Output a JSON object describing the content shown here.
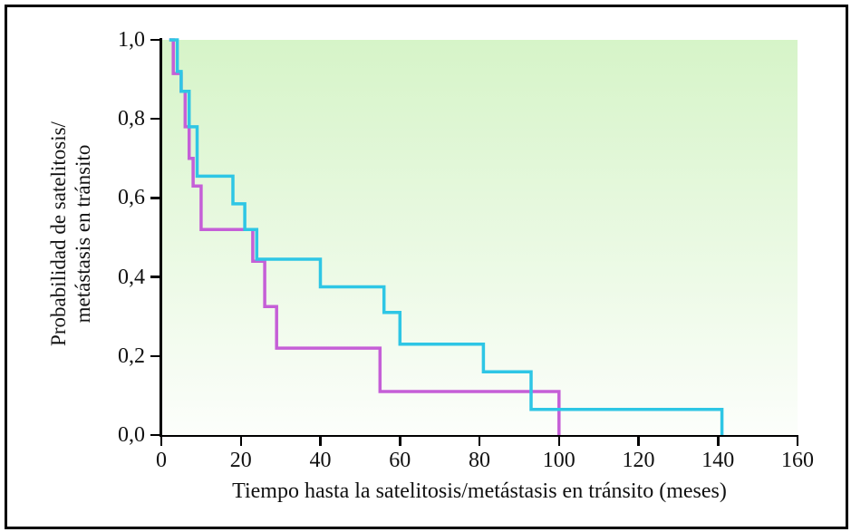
{
  "chart_data": {
    "type": "line",
    "subtype": "kaplan-meier-step",
    "title": "",
    "xlabel": "Tiempo hasta la satelitosis/metástasis en tránsito (meses)",
    "ylabel_line1": "Probabilidad de satelitosis/",
    "ylabel_line2": "metástasis en tránsito",
    "xlim": [
      0,
      160
    ],
    "ylim": [
      0,
      1
    ],
    "grid": "off",
    "legend": "none",
    "x_ticks": [
      0,
      20,
      40,
      60,
      80,
      100,
      120,
      140,
      160
    ],
    "x_tick_labels": [
      "0",
      "20",
      "40",
      "60",
      "80",
      "100",
      "120",
      "140",
      "160"
    ],
    "y_ticks": [
      1.0,
      0.8,
      0.6,
      0.4,
      0.2,
      0.0
    ],
    "y_tick_labels": [
      "1,0",
      "0,8",
      "0,6",
      "0,4",
      "0,2",
      "0,0"
    ],
    "plot_bg_top": "#d6f4c8",
    "plot_bg_bottom": "#fcfefb",
    "axis_color": "#000000",
    "series": [
      {
        "name": "curva-magenta",
        "color": "#c55fd7",
        "steps": [
          [
            2,
            1.0
          ],
          [
            3,
            0.915
          ],
          [
            5,
            0.87
          ],
          [
            6,
            0.78
          ],
          [
            7,
            0.7
          ],
          [
            8,
            0.63
          ],
          [
            10,
            0.52
          ],
          [
            23,
            0.44
          ],
          [
            26,
            0.325
          ],
          [
            29,
            0.22
          ],
          [
            55,
            0.11
          ],
          [
            100,
            0.0
          ]
        ]
      },
      {
        "name": "curva-cian",
        "color": "#2ec6e5",
        "steps": [
          [
            2,
            1.0
          ],
          [
            4,
            0.92
          ],
          [
            5,
            0.87
          ],
          [
            7,
            0.78
          ],
          [
            9,
            0.655
          ],
          [
            18,
            0.585
          ],
          [
            21,
            0.52
          ],
          [
            24,
            0.445
          ],
          [
            40,
            0.375
          ],
          [
            56,
            0.31
          ],
          [
            60,
            0.23
          ],
          [
            81,
            0.16
          ],
          [
            93,
            0.065
          ],
          [
            141,
            0.0
          ]
        ]
      }
    ]
  }
}
